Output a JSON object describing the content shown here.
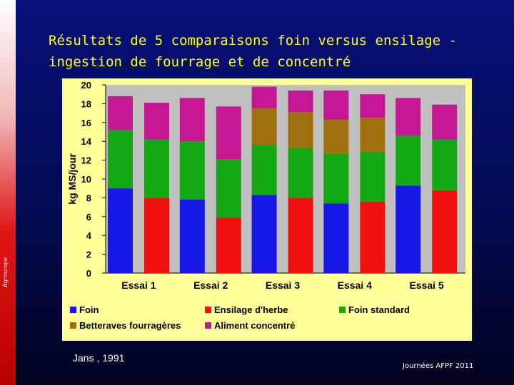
{
  "slide": {
    "title": "Résultats de 5 comparaisons foin versus ensilage -\ningestion de fourrage et de concentré",
    "brand": "Agroscope",
    "source": "Jans , 1991",
    "footer": "Journées AFPF 2011"
  },
  "colors": {
    "Foin": "#1717e6",
    "Ensilage d'herbe": "#f01010",
    "Foin standard": "#14a814",
    "Betteraves fourragères": "#a0700e",
    "Aliment concentré": "#c51793",
    "chart_background": "#ffff99",
    "plot_background": "#c0c0c0"
  },
  "chart_data": {
    "type": "bar",
    "stacked": true,
    "ylabel": "kg MS/jour",
    "ylim": [
      0,
      20
    ],
    "yticks": [
      0,
      2,
      4,
      6,
      8,
      10,
      12,
      14,
      16,
      18,
      20
    ],
    "groups": [
      "Essai 1",
      "Essai 2",
      "Essai 3",
      "Essai 4",
      "Essai 5"
    ],
    "bars": [
      {
        "group": 0,
        "segments": [
          {
            "series": "Foin",
            "value": 9.0
          },
          {
            "series": "Foin standard",
            "value": 6.2
          },
          {
            "series": "Aliment concentré",
            "value": 3.6
          }
        ]
      },
      {
        "group": 0,
        "segments": [
          {
            "series": "Ensilage d'herbe",
            "value": 8.0
          },
          {
            "series": "Foin standard",
            "value": 6.2
          },
          {
            "series": "Aliment concentré",
            "value": 3.9
          }
        ]
      },
      {
        "group": 1,
        "segments": [
          {
            "series": "Foin",
            "value": 7.8
          },
          {
            "series": "Foin standard",
            "value": 6.2
          },
          {
            "series": "Aliment concentré",
            "value": 4.6
          }
        ]
      },
      {
        "group": 1,
        "segments": [
          {
            "series": "Ensilage d'herbe",
            "value": 5.9
          },
          {
            "series": "Foin standard",
            "value": 6.2
          },
          {
            "series": "Aliment concentré",
            "value": 5.6
          }
        ]
      },
      {
        "group": 2,
        "segments": [
          {
            "series": "Foin",
            "value": 8.3
          },
          {
            "series": "Foin standard",
            "value": 5.3
          },
          {
            "series": "Betteraves fourragères",
            "value": 3.9
          },
          {
            "series": "Aliment concentré",
            "value": 2.3
          }
        ]
      },
      {
        "group": 2,
        "segments": [
          {
            "series": "Ensilage d'herbe",
            "value": 8.0
          },
          {
            "series": "Foin standard",
            "value": 5.3
          },
          {
            "series": "Betteraves fourragères",
            "value": 3.8
          },
          {
            "series": "Aliment concentré",
            "value": 2.3
          }
        ]
      },
      {
        "group": 3,
        "segments": [
          {
            "series": "Foin",
            "value": 7.4
          },
          {
            "series": "Foin standard",
            "value": 5.3
          },
          {
            "series": "Betteraves fourragères",
            "value": 3.6
          },
          {
            "series": "Aliment concentré",
            "value": 3.1
          }
        ]
      },
      {
        "group": 3,
        "segments": [
          {
            "series": "Ensilage d'herbe",
            "value": 7.6
          },
          {
            "series": "Foin standard",
            "value": 5.3
          },
          {
            "series": "Betteraves fourragères",
            "value": 3.6
          },
          {
            "series": "Aliment concentré",
            "value": 2.5
          }
        ]
      },
      {
        "group": 4,
        "segments": [
          {
            "series": "Foin",
            "value": 9.3
          },
          {
            "series": "Foin standard",
            "value": 5.3
          },
          {
            "series": "Aliment concentré",
            "value": 4.0
          }
        ]
      },
      {
        "group": 4,
        "segments": [
          {
            "series": "Ensilage d'herbe",
            "value": 8.8
          },
          {
            "series": "Foin standard",
            "value": 5.4
          },
          {
            "series": "Aliment concentré",
            "value": 3.7
          }
        ]
      }
    ],
    "legend": [
      "Foin",
      "Ensilage d'herbe",
      "Foin standard",
      "Betteraves fourragères",
      "Aliment concentré"
    ],
    "legend_position": "bottom",
    "grid": false
  }
}
